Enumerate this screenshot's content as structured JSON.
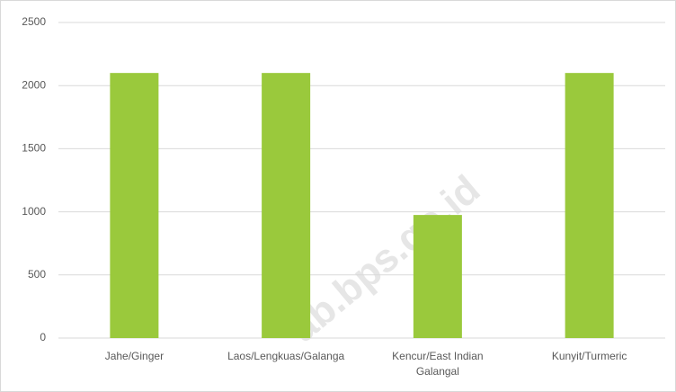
{
  "chart_data": {
    "type": "bar",
    "categories": [
      "Jahe/Ginger",
      "Laos/Lengkuas/Galanga",
      "Kencur/East Indian Galangal",
      "Kunyit/Turmeric"
    ],
    "values": [
      2100,
      2100,
      975,
      2100
    ],
    "color": "#9ac93c",
    "ylim": [
      0,
      2500
    ],
    "yticks": [
      0,
      500,
      1000,
      1500,
      2000,
      2500
    ],
    "grid": true,
    "watermark": "ab.bps.go.id"
  }
}
